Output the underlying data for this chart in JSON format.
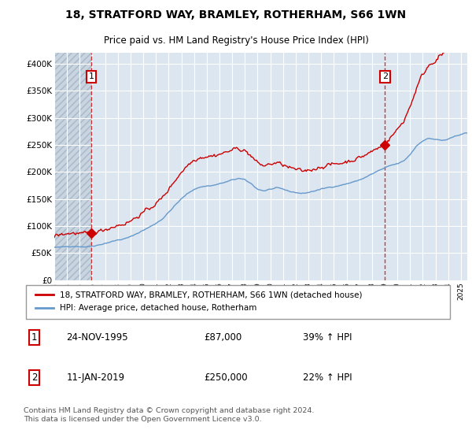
{
  "title1": "18, STRATFORD WAY, BRAMLEY, ROTHERHAM, S66 1WN",
  "title2": "Price paid vs. HM Land Registry's House Price Index (HPI)",
  "ylim": [
    0,
    420000
  ],
  "yticks": [
    0,
    50000,
    100000,
    150000,
    200000,
    250000,
    300000,
    350000,
    400000
  ],
  "ytick_labels": [
    "£0",
    "£50K",
    "£100K",
    "£150K",
    "£200K",
    "£250K",
    "£300K",
    "£350K",
    "£400K"
  ],
  "bg_color": "#dce6f0",
  "hatch_bg_color": "#c8d4e0",
  "grid_color": "#ffffff",
  "red_color": "#cc0000",
  "blue_color": "#6699cc",
  "sale1_date": 1995.9,
  "sale1_price": 87000,
  "sale2_date": 2019.03,
  "sale2_price": 250000,
  "legend_label1": "18, STRATFORD WAY, BRAMLEY, ROTHERHAM, S66 1WN (detached house)",
  "legend_label2": "HPI: Average price, detached house, Rotherham",
  "annotation1_label": "1",
  "annotation2_label": "2",
  "note1_date": "24-NOV-1995",
  "note1_price": "£87,000",
  "note1_hpi": "39% ↑ HPI",
  "note2_date": "11-JAN-2019",
  "note2_price": "£250,000",
  "note2_hpi": "22% ↑ HPI",
  "copyright": "Contains HM Land Registry data © Crown copyright and database right 2024.\nThis data is licensed under the Open Government Licence v3.0.",
  "xmin": 1993.0,
  "xmax": 2025.5
}
